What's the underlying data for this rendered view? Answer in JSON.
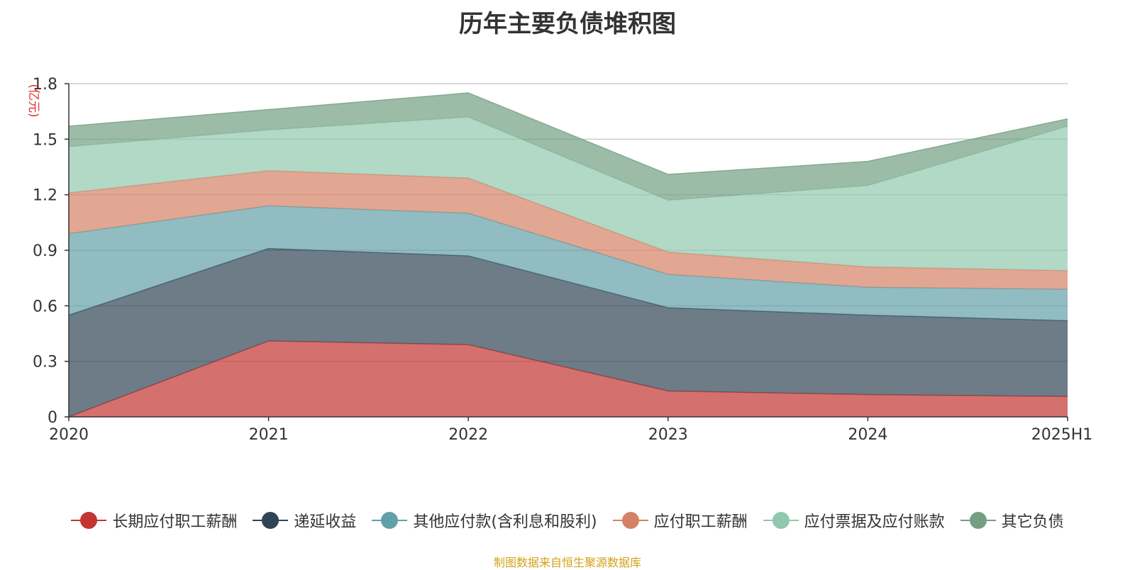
{
  "chart_data": {
    "type": "area",
    "stacked": true,
    "title": "历年主要负债堆积图",
    "unit_label": "(亿元)",
    "categories": [
      "2020",
      "2021",
      "2022",
      "2023",
      "2024",
      "2025H1"
    ],
    "y_ticks": [
      "0",
      "0.3",
      "0.6",
      "0.9",
      "1.2",
      "1.5",
      "1.8"
    ],
    "ylim": [
      0,
      1.8
    ],
    "grid": true,
    "legend_position": "bottom",
    "series": [
      {
        "name": "长期应付职工薪酬",
        "values": [
          0.0,
          0.41,
          0.39,
          0.14,
          0.12,
          0.11
        ],
        "color": "#c23531"
      },
      {
        "name": "递延收益",
        "values": [
          0.55,
          0.5,
          0.48,
          0.45,
          0.43,
          0.41
        ],
        "color": "#2f4554"
      },
      {
        "name": "其他应付款(含利息和股利)",
        "values": [
          0.44,
          0.23,
          0.23,
          0.18,
          0.15,
          0.17
        ],
        "color": "#61a0a8"
      },
      {
        "name": "应付职工薪酬",
        "values": [
          0.22,
          0.19,
          0.19,
          0.12,
          0.11,
          0.1
        ],
        "color": "#d48265"
      },
      {
        "name": "应付票据及应付账款",
        "values": [
          0.25,
          0.22,
          0.33,
          0.28,
          0.44,
          0.78
        ],
        "color": "#91c7ae"
      },
      {
        "name": "其它负债",
        "values": [
          0.11,
          0.11,
          0.13,
          0.14,
          0.13,
          0.04
        ],
        "color": "#749f83"
      }
    ]
  },
  "footer": {
    "source": "制图数据来自恒生聚源数据库"
  }
}
